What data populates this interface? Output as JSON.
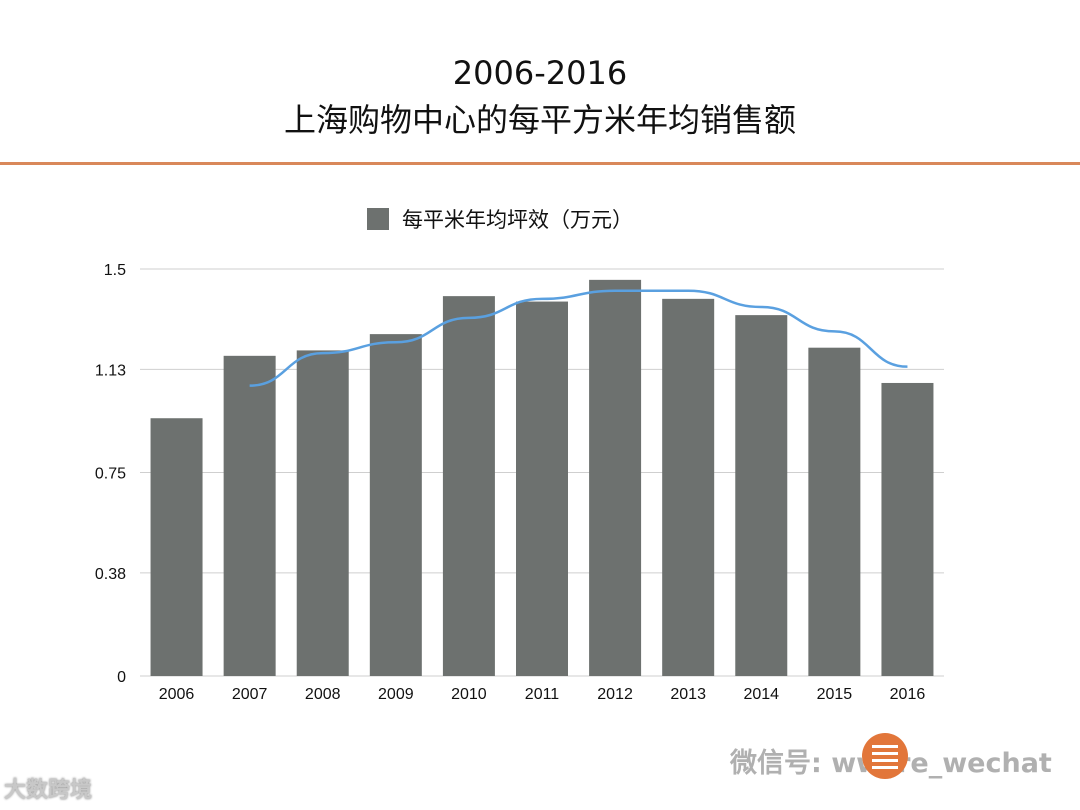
{
  "title": {
    "line1": "2006-2016",
    "line2": "上海购物中心的每平方米年均销售额"
  },
  "colors": {
    "bar": "#6d716f",
    "trend": "#5aa0e0",
    "grid": "#cfcfcf",
    "accent": "#d9885a"
  },
  "chart_data": {
    "type": "bar",
    "title": "2006-2016 上海购物中心的每平方米年均销售额",
    "categories": [
      "2006",
      "2007",
      "2008",
      "2009",
      "2010",
      "2011",
      "2012",
      "2013",
      "2014",
      "2015",
      "2016"
    ],
    "series": [
      {
        "name": "每平米年均坪效（万元）",
        "values": [
          0.95,
          1.18,
          1.2,
          1.26,
          1.4,
          1.38,
          1.46,
          1.39,
          1.33,
          1.21,
          1.08
        ]
      }
    ],
    "trendline": {
      "type": "line",
      "categories": [
        "2007",
        "2008",
        "2009",
        "2010",
        "2011",
        "2012",
        "2013",
        "2014",
        "2015",
        "2016"
      ],
      "values": [
        1.07,
        1.19,
        1.23,
        1.32,
        1.39,
        1.42,
        1.42,
        1.36,
        1.27,
        1.14
      ]
    },
    "yticks": [
      "0",
      "0.38",
      "0.75",
      "1.13",
      "1.5"
    ],
    "ylim": [
      0,
      1.5
    ],
    "xlabel": "",
    "ylabel": "",
    "legend": "top-center",
    "grid": true
  },
  "watermarks": {
    "left": "大数跨境",
    "wechat": "微信号: wwcre_wechat"
  }
}
